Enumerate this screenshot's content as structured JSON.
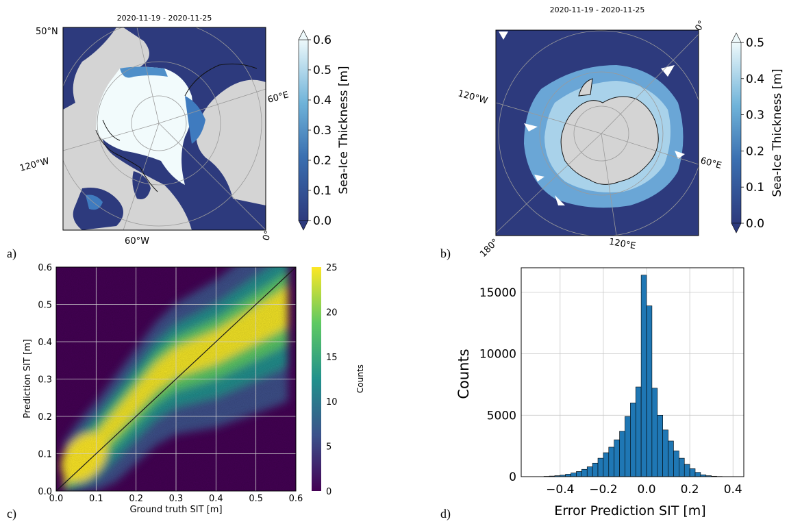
{
  "panels": {
    "a": {
      "label": "a)",
      "title": "2020-11-19 - 2020-11-25",
      "lon_labels": [
        "50°N",
        "60°E",
        "120°W",
        "60°W",
        "0°"
      ],
      "colorbar": {
        "label": "Sea-Ice Thickness [m]",
        "ticks": [
          "0.0",
          "0.1",
          "0.2",
          "0.3",
          "0.4",
          "0.5",
          "0.6"
        ],
        "min": 0.0,
        "max": 0.6
      }
    },
    "b": {
      "label": "b)",
      "title": "2020-11-19 - 2020-11-25",
      "lon_labels": [
        "0°",
        "120°W",
        "60°E",
        "180°",
        "120°E"
      ],
      "colorbar": {
        "label": "Sea-Ice Thickness [m]",
        "ticks": [
          "0.0",
          "0.1",
          "0.2",
          "0.3",
          "0.4",
          "0.5"
        ],
        "min": 0.0,
        "max": 0.5
      }
    },
    "c": {
      "label": "c)",
      "colorbar": {
        "label": "Counts",
        "ticks": [
          "0",
          "5",
          "10",
          "15",
          "20",
          "25"
        ],
        "min": 0,
        "max": 25
      }
    },
    "d": {
      "label": "d)"
    }
  },
  "colors": {
    "ocean": "#2d3a7d",
    "land": "#d4d4d4",
    "ice_high": "#f2fbfc",
    "ice_mid": "#5a9ed0",
    "hist_bar": "#1f77b4",
    "viridis": [
      "#440154",
      "#3b528b",
      "#21918c",
      "#5ec962",
      "#fde725"
    ]
  },
  "chart_data": [
    {
      "type": "heatmap",
      "panel": "c",
      "xlabel": "Ground truth SIT [m]",
      "ylabel": "Prediction SIT [m]",
      "xlim": [
        0.0,
        0.6
      ],
      "ylim": [
        0.0,
        0.6
      ],
      "x_ticks": [
        "0.0",
        "0.1",
        "0.2",
        "0.3",
        "0.4",
        "0.5",
        "0.6"
      ],
      "y_ticks": [
        "0.0",
        "0.1",
        "0.2",
        "0.3",
        "0.4",
        "0.5",
        "0.6"
      ],
      "grid": true,
      "identity_line": true,
      "ridge": {
        "x": [
          0.02,
          0.05,
          0.1,
          0.15,
          0.2,
          0.25,
          0.3,
          0.35,
          0.4,
          0.45,
          0.5,
          0.55,
          0.58
        ],
        "y": [
          0.04,
          0.08,
          0.13,
          0.19,
          0.25,
          0.31,
          0.35,
          0.37,
          0.39,
          0.42,
          0.45,
          0.48,
          0.5
        ]
      },
      "colorbar_label": "Counts",
      "colorbar_range": [
        0,
        25
      ]
    },
    {
      "type": "bar",
      "panel": "d",
      "xlabel": "Error Prediction SIT [m]",
      "ylabel": "Counts",
      "xlim": [
        -0.58,
        0.45
      ],
      "ylim": [
        0,
        17000
      ],
      "x_ticks": [
        "−0.4",
        "−0.2",
        "0.0",
        "0.2",
        "0.4"
      ],
      "y_ticks": [
        "0",
        "5000",
        "10000",
        "15000"
      ],
      "grid": true,
      "bin_width": 0.025,
      "bin_centers": [
        -0.4625,
        -0.4375,
        -0.4125,
        -0.3875,
        -0.3625,
        -0.3375,
        -0.3125,
        -0.2875,
        -0.2625,
        -0.2375,
        -0.2125,
        -0.1875,
        -0.1625,
        -0.1375,
        -0.1125,
        -0.0875,
        -0.0625,
        -0.0375,
        -0.0125,
        0.0125,
        0.0375,
        0.0625,
        0.0875,
        0.1125,
        0.1375,
        0.1625,
        0.1875,
        0.2125,
        0.2375,
        0.2625,
        0.2875,
        0.3125,
        0.3375
      ],
      "values": [
        30,
        50,
        80,
        120,
        200,
        300,
        420,
        600,
        800,
        1100,
        1500,
        1950,
        2400,
        3000,
        3700,
        4900,
        6000,
        7300,
        16400,
        13900,
        7200,
        5000,
        3800,
        2900,
        2100,
        1500,
        1000,
        650,
        350,
        150,
        80,
        40,
        20
      ]
    }
  ]
}
